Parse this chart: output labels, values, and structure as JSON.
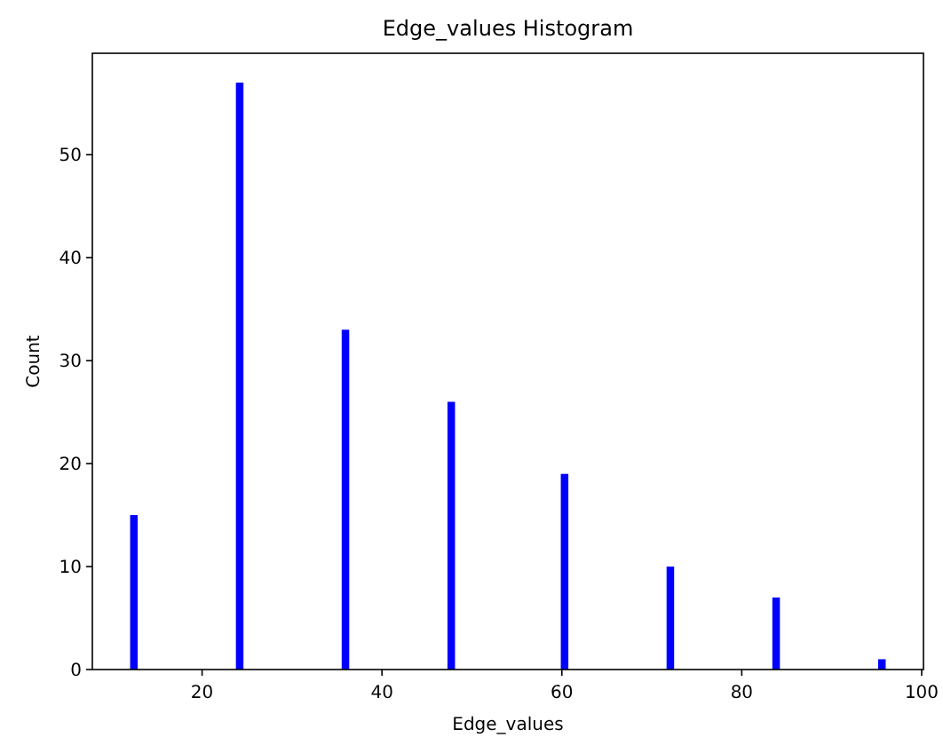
{
  "chart_data": {
    "type": "histogram",
    "title": "Edge_values Histogram",
    "xlabel": "Edge_values",
    "ylabel": "Count",
    "bins": [
      12,
      12.84,
      23.76,
      24.6,
      35.52,
      36.36,
      47.28,
      48.12,
      59.88,
      60.72,
      71.64,
      72.48,
      83.4,
      84.24,
      95.16,
      96
    ],
    "values": [
      15,
      0,
      57,
      0,
      33,
      0,
      26,
      0,
      19,
      0,
      10,
      0,
      7,
      0,
      1
    ],
    "color": "#0000ff",
    "xlim": [
      7.8,
      100.2
    ],
    "xticks": [
      20,
      40,
      60,
      80,
      100
    ],
    "ylim": [
      0,
      59.85
    ],
    "yticks": [
      0,
      10,
      20,
      30,
      40,
      50
    ]
  }
}
